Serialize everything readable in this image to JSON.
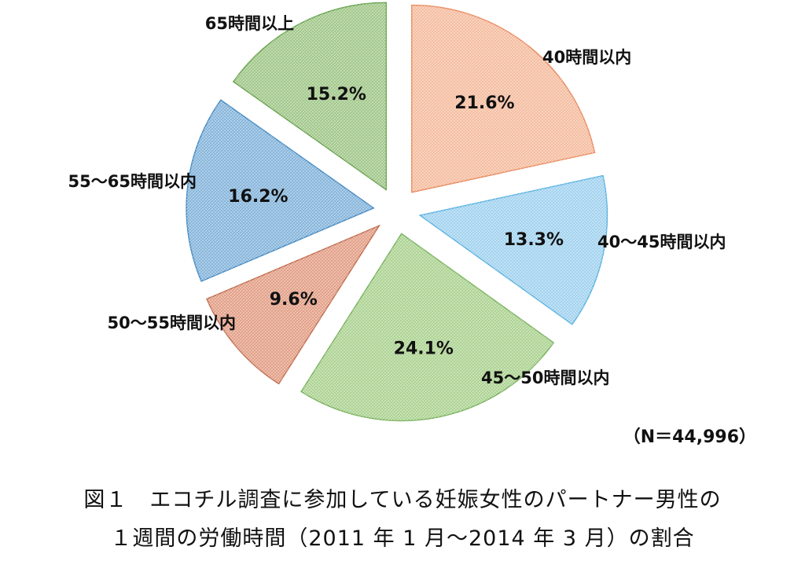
{
  "chart_data": {
    "type": "pie",
    "exploded": true,
    "categories": [
      "40時間以内",
      "40〜45時間以内",
      "45〜50時間以内",
      "50〜55時間以内",
      "55〜65時間以内",
      "65時間以上"
    ],
    "values": [
      21.6,
      13.3,
      24.1,
      9.6,
      16.2,
      15.2
    ],
    "value_labels": [
      "21.6%",
      "13.3%",
      "24.1%",
      "9.6%",
      "16.2%",
      "15.2%"
    ],
    "colors": [
      "#f4b99a",
      "#9dd0ee",
      "#a8d08c",
      "#e19a80",
      "#7fb1d9",
      "#9cc483"
    ],
    "stroke_colors": [
      "#e8875a",
      "#56b0e0",
      "#74b058",
      "#c06848",
      "#3f86c0",
      "#62a048"
    ],
    "note": "（N＝44,996）",
    "caption_line1": "図１　エコチル調査に参加している妊娠女性のパートナー男性の",
    "caption_line2": "１週間の労働時間（2011 年 1 月〜2014 年 3 月）の割合"
  }
}
